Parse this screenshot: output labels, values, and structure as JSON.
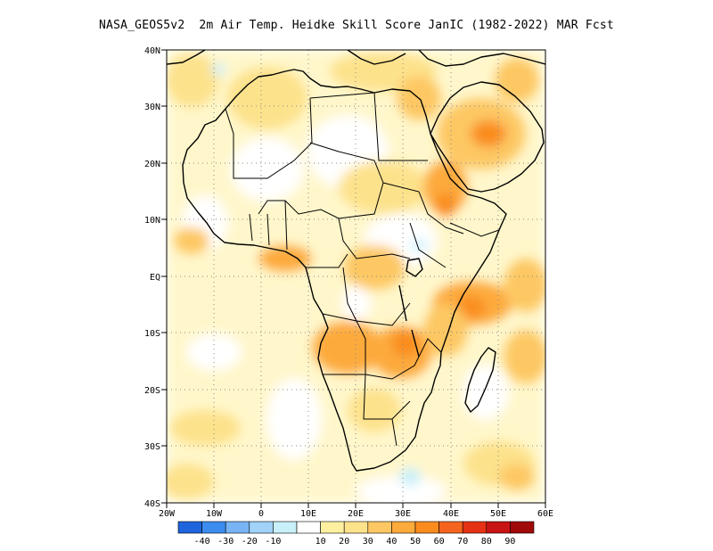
{
  "title": "NASA_GEOS5v2  2m Air Temp. Heidke Skill Score JanIC (1982-2022) MAR Fcst",
  "map": {
    "region": "Africa",
    "lat_labels": [
      "40N",
      "30N",
      "20N",
      "10N",
      "EQ",
      "10S",
      "20S",
      "30S",
      "40S"
    ],
    "lon_labels": [
      "20W",
      "10W",
      "0",
      "10E",
      "20E",
      "30E",
      "40E",
      "50E",
      "60E"
    ],
    "lat_range": [
      -40,
      40
    ],
    "lon_range": [
      -20,
      60
    ],
    "grid": "dotted"
  },
  "colorbar": {
    "labels": [
      "-40",
      "-30",
      "-20",
      "-10",
      "10",
      "20",
      "30",
      "40",
      "50",
      "60",
      "70",
      "80",
      "90"
    ],
    "colors": [
      "#1e64dc",
      "#3c8cf0",
      "#78b4f5",
      "#a0d2fa",
      "#c8f0fa",
      "#ffffff",
      "#fff0a0",
      "#fde28c",
      "#fdc864",
      "#fdaa3c",
      "#fa8c1e",
      "#f5641e",
      "#e63214",
      "#c81414",
      "#a00a0a"
    ]
  }
}
